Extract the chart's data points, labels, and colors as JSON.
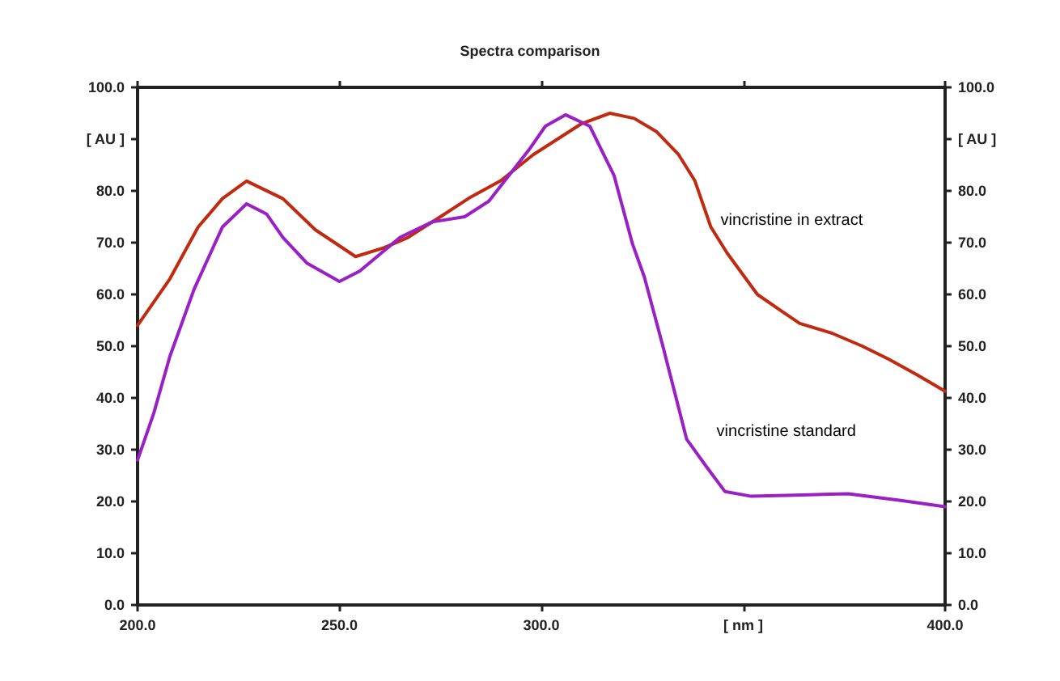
{
  "chart_data": {
    "type": "line",
    "title": "Spectra comparison",
    "xlim": [
      200,
      400
    ],
    "xticks": [
      {
        "value": 200,
        "label": "200.0"
      },
      {
        "value": 250,
        "label": "250.0"
      },
      {
        "value": 300,
        "label": "300.0"
      },
      {
        "value": 350,
        "label": "[ nm ]"
      },
      {
        "value": 400,
        "label": "400.0"
      }
    ],
    "ylim": [
      0,
      100
    ],
    "yticks": [
      {
        "value": 0,
        "label": "0.0"
      },
      {
        "value": 10,
        "label": "10.0"
      },
      {
        "value": 20,
        "label": "20.0"
      },
      {
        "value": 30,
        "label": "30.0"
      },
      {
        "value": 40,
        "label": "40.0"
      },
      {
        "value": 50,
        "label": "50.0"
      },
      {
        "value": 60,
        "label": "60.0"
      },
      {
        "value": 70,
        "label": "70.0"
      },
      {
        "value": 80,
        "label": "80.0"
      },
      {
        "value": 90,
        "label": "[ AU ]"
      },
      {
        "value": 100,
        "label": "100.0"
      }
    ],
    "y2lim": [
      0,
      100
    ],
    "y2ticks": [
      {
        "value": 0,
        "label": "0.0"
      },
      {
        "value": 10,
        "label": "10.0"
      },
      {
        "value": 20,
        "label": "20.0"
      },
      {
        "value": 30,
        "label": "30.0"
      },
      {
        "value": 40,
        "label": "40.0"
      },
      {
        "value": 50,
        "label": "50.0"
      },
      {
        "value": 60,
        "label": "60.0"
      },
      {
        "value": 70,
        "label": "70.0"
      },
      {
        "value": 80,
        "label": "80.0"
      },
      {
        "value": 90,
        "label": "[ AU ]"
      },
      {
        "value": 100,
        "label": "100.0"
      }
    ],
    "series": [
      {
        "name": "vincristine in extract",
        "color": "#c02a10",
        "x": [
          200,
          208,
          215,
          221,
          227,
          236,
          244,
          254,
          261,
          267,
          275,
          282.5,
          290,
          298,
          304,
          310,
          317,
          323,
          328.6,
          334,
          338,
          342,
          346,
          353.5,
          360,
          364,
          372,
          379.5,
          386,
          393,
          400
        ],
        "values": [
          54,
          63,
          73,
          78.5,
          81.9,
          78.5,
          72.5,
          67.3,
          69,
          71,
          75,
          78.8,
          82,
          87,
          90,
          93,
          95,
          94,
          91.4,
          87,
          82,
          73,
          68,
          60,
          56.5,
          54.4,
          52.5,
          50,
          47.5,
          44.5,
          41.3
        ]
      },
      {
        "name": "vincristine standard",
        "color": "#9a1fc4",
        "x": [
          200,
          204,
          208,
          214,
          221,
          227,
          232,
          236,
          242,
          250,
          255,
          261,
          265,
          273,
          281,
          287,
          292,
          297,
          301,
          306,
          312,
          318,
          322.6,
          325.5,
          330,
          336,
          341,
          345.5,
          352,
          362.7,
          376,
          389,
          400
        ],
        "values": [
          28,
          37,
          48,
          61,
          73,
          77.5,
          75.5,
          71,
          66,
          62.5,
          64.5,
          68.4,
          71,
          74,
          75,
          78,
          83,
          88,
          92.5,
          94.7,
          92.5,
          83,
          69.7,
          63.4,
          50.3,
          32,
          26.6,
          21.9,
          21,
          21.2,
          21.5,
          20.2,
          19
        ]
      }
    ],
    "grid": false,
    "legend": false,
    "marker": "none",
    "line_style": "solid"
  }
}
